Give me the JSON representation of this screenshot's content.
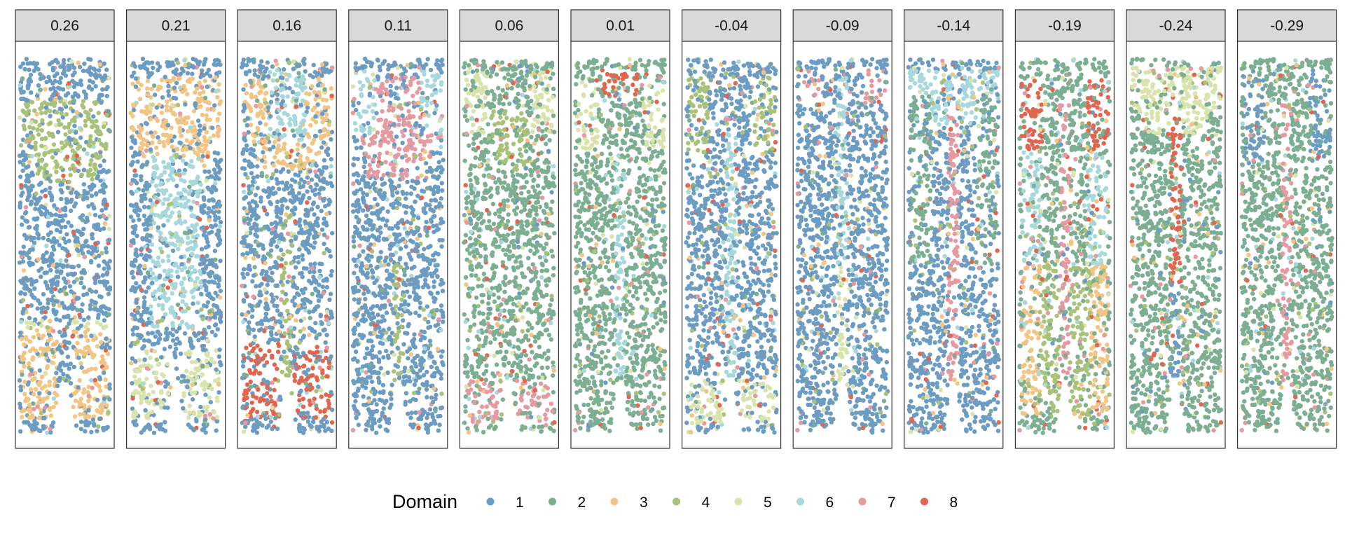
{
  "chart_data": {
    "type": "scatter",
    "facet_labels": [
      "0.26",
      "0.21",
      "0.16",
      "0.11",
      "0.06",
      "0.01",
      "-0.04",
      "-0.09",
      "-0.14",
      "-0.19",
      "-0.24",
      "-0.29"
    ],
    "legend": {
      "title": "Domain",
      "position": "bottom",
      "entries": [
        "1",
        "2",
        "3",
        "4",
        "5",
        "6",
        "7",
        "8"
      ]
    },
    "colors": {
      "1": "#6c9cc2",
      "2": "#7cae92",
      "3": "#f2c585",
      "4": "#a9c27a",
      "5": "#d9e4ad",
      "6": "#a7d8dc",
      "7": "#e59aa1",
      "8": "#e0664f"
    },
    "style": {
      "strip_fill": "#d9d9d9",
      "panel_border": "#333333",
      "background": "#ffffff"
    },
    "panels": [
      {
        "label": "0.26",
        "regions": [
          {
            "domain": "4",
            "y0": 0.11,
            "y1": 0.33,
            "shape": "cap"
          },
          {
            "domain": "5",
            "y0": 0.7,
            "y1": 0.94,
            "shape": "legs"
          },
          {
            "domain": "3",
            "y0": 0.72,
            "y1": 0.96,
            "shape": "legs"
          }
        ]
      },
      {
        "label": "0.21",
        "regions": [
          {
            "domain": "3",
            "y0": 0.05,
            "y1": 0.33,
            "shape": "cap"
          },
          {
            "domain": "6",
            "y0": 0.26,
            "y1": 0.72,
            "shape": "core"
          },
          {
            "domain": "5",
            "y0": 0.78,
            "y1": 0.96,
            "shape": "legs"
          }
        ]
      },
      {
        "label": "0.16",
        "regions": [
          {
            "domain": "3",
            "y0": 0.05,
            "y1": 0.3,
            "shape": "cap"
          },
          {
            "domain": "6",
            "y0": 0.03,
            "y1": 0.22,
            "shape": "top-center"
          },
          {
            "domain": "4",
            "y0": 0.4,
            "y1": 0.92,
            "shape": "spine"
          },
          {
            "domain": "8",
            "y0": 0.76,
            "y1": 0.96,
            "shape": "legs"
          }
        ]
      },
      {
        "label": "0.11",
        "regions": [
          {
            "domain": "7",
            "y0": 0.05,
            "y1": 0.32,
            "shape": "cap"
          },
          {
            "domain": "6",
            "y0": 0.03,
            "y1": 0.2,
            "shape": "cap-edges"
          },
          {
            "domain": "4",
            "y0": 0.55,
            "y1": 0.88,
            "shape": "spine"
          }
        ]
      },
      {
        "label": "0.06",
        "regions": [
          {
            "domain": "4",
            "y0": 0.14,
            "y1": 0.3,
            "shape": "top-center"
          },
          {
            "domain": "5",
            "y0": 0.03,
            "y1": 0.2,
            "shape": "cap-edges"
          },
          {
            "domain": "7",
            "y0": 0.86,
            "y1": 0.98,
            "shape": "legs"
          }
        ]
      },
      {
        "label": "0.01",
        "regions": [
          {
            "domain": "8",
            "y0": 0.03,
            "y1": 0.1,
            "shape": "top-center"
          },
          {
            "domain": "5",
            "y0": 0.06,
            "y1": 0.24,
            "shape": "cap-edges"
          },
          {
            "domain": "6",
            "y0": 0.25,
            "y1": 0.85,
            "shape": "spine"
          }
        ]
      },
      {
        "label": "-0.04",
        "regions": [
          {
            "domain": "4",
            "y0": 0.05,
            "y1": 0.25,
            "shape": "cap-edges"
          },
          {
            "domain": "6",
            "y0": 0.2,
            "y1": 0.85,
            "shape": "spine"
          },
          {
            "domain": "5",
            "y0": 0.86,
            "y1": 0.98,
            "shape": "legs"
          }
        ]
      },
      {
        "label": "-0.09",
        "regions": [
          {
            "domain": "6",
            "y0": 0.05,
            "y1": 0.55,
            "shape": "spine"
          },
          {
            "domain": "5",
            "y0": 0.55,
            "y1": 0.92,
            "shape": "spine"
          },
          {
            "domain": "7",
            "y0": 0.03,
            "y1": 0.12,
            "shape": "cap-edges"
          }
        ]
      },
      {
        "label": "-0.14",
        "regions": [
          {
            "domain": "6",
            "y0": 0.03,
            "y1": 0.18,
            "shape": "cap"
          },
          {
            "domain": "2",
            "y0": 0.1,
            "y1": 0.55,
            "shape": "cap-edges"
          },
          {
            "domain": "7",
            "y0": 0.12,
            "y1": 0.9,
            "shape": "spine"
          }
        ]
      },
      {
        "label": "-0.19",
        "regions": [
          {
            "domain": "6",
            "y0": 0.15,
            "y1": 0.6,
            "shape": "cap-edges"
          },
          {
            "domain": "3",
            "y0": 0.55,
            "y1": 0.95,
            "shape": "legs"
          },
          {
            "domain": "4",
            "y0": 0.55,
            "y1": 0.96,
            "shape": "core"
          },
          {
            "domain": "8",
            "y0": 0.05,
            "y1": 0.25,
            "shape": "cap-edges"
          },
          {
            "domain": "7",
            "y0": 0.1,
            "y1": 0.92,
            "shape": "spine"
          }
        ]
      },
      {
        "label": "-0.24",
        "regions": [
          {
            "domain": "5",
            "y0": 0.02,
            "y1": 0.2,
            "shape": "cap"
          },
          {
            "domain": "8",
            "y0": 0.15,
            "y1": 0.95,
            "shape": "spine"
          },
          {
            "domain": "1",
            "y0": 0.6,
            "y1": 0.96,
            "shape": "spine"
          }
        ]
      },
      {
        "label": "-0.29",
        "regions": [
          {
            "domain": "6",
            "y0": 0.03,
            "y1": 0.18,
            "shape": "cap-edges"
          },
          {
            "domain": "1",
            "y0": 0.03,
            "y1": 0.28,
            "shape": "cap-edges"
          },
          {
            "domain": "7",
            "y0": 0.1,
            "y1": 0.9,
            "shape": "spine"
          }
        ]
      }
    ],
    "base_domain": [
      "1",
      "1",
      "1",
      "1",
      "2",
      "2",
      "1",
      "1",
      "1",
      "2",
      "2",
      "2"
    ]
  }
}
